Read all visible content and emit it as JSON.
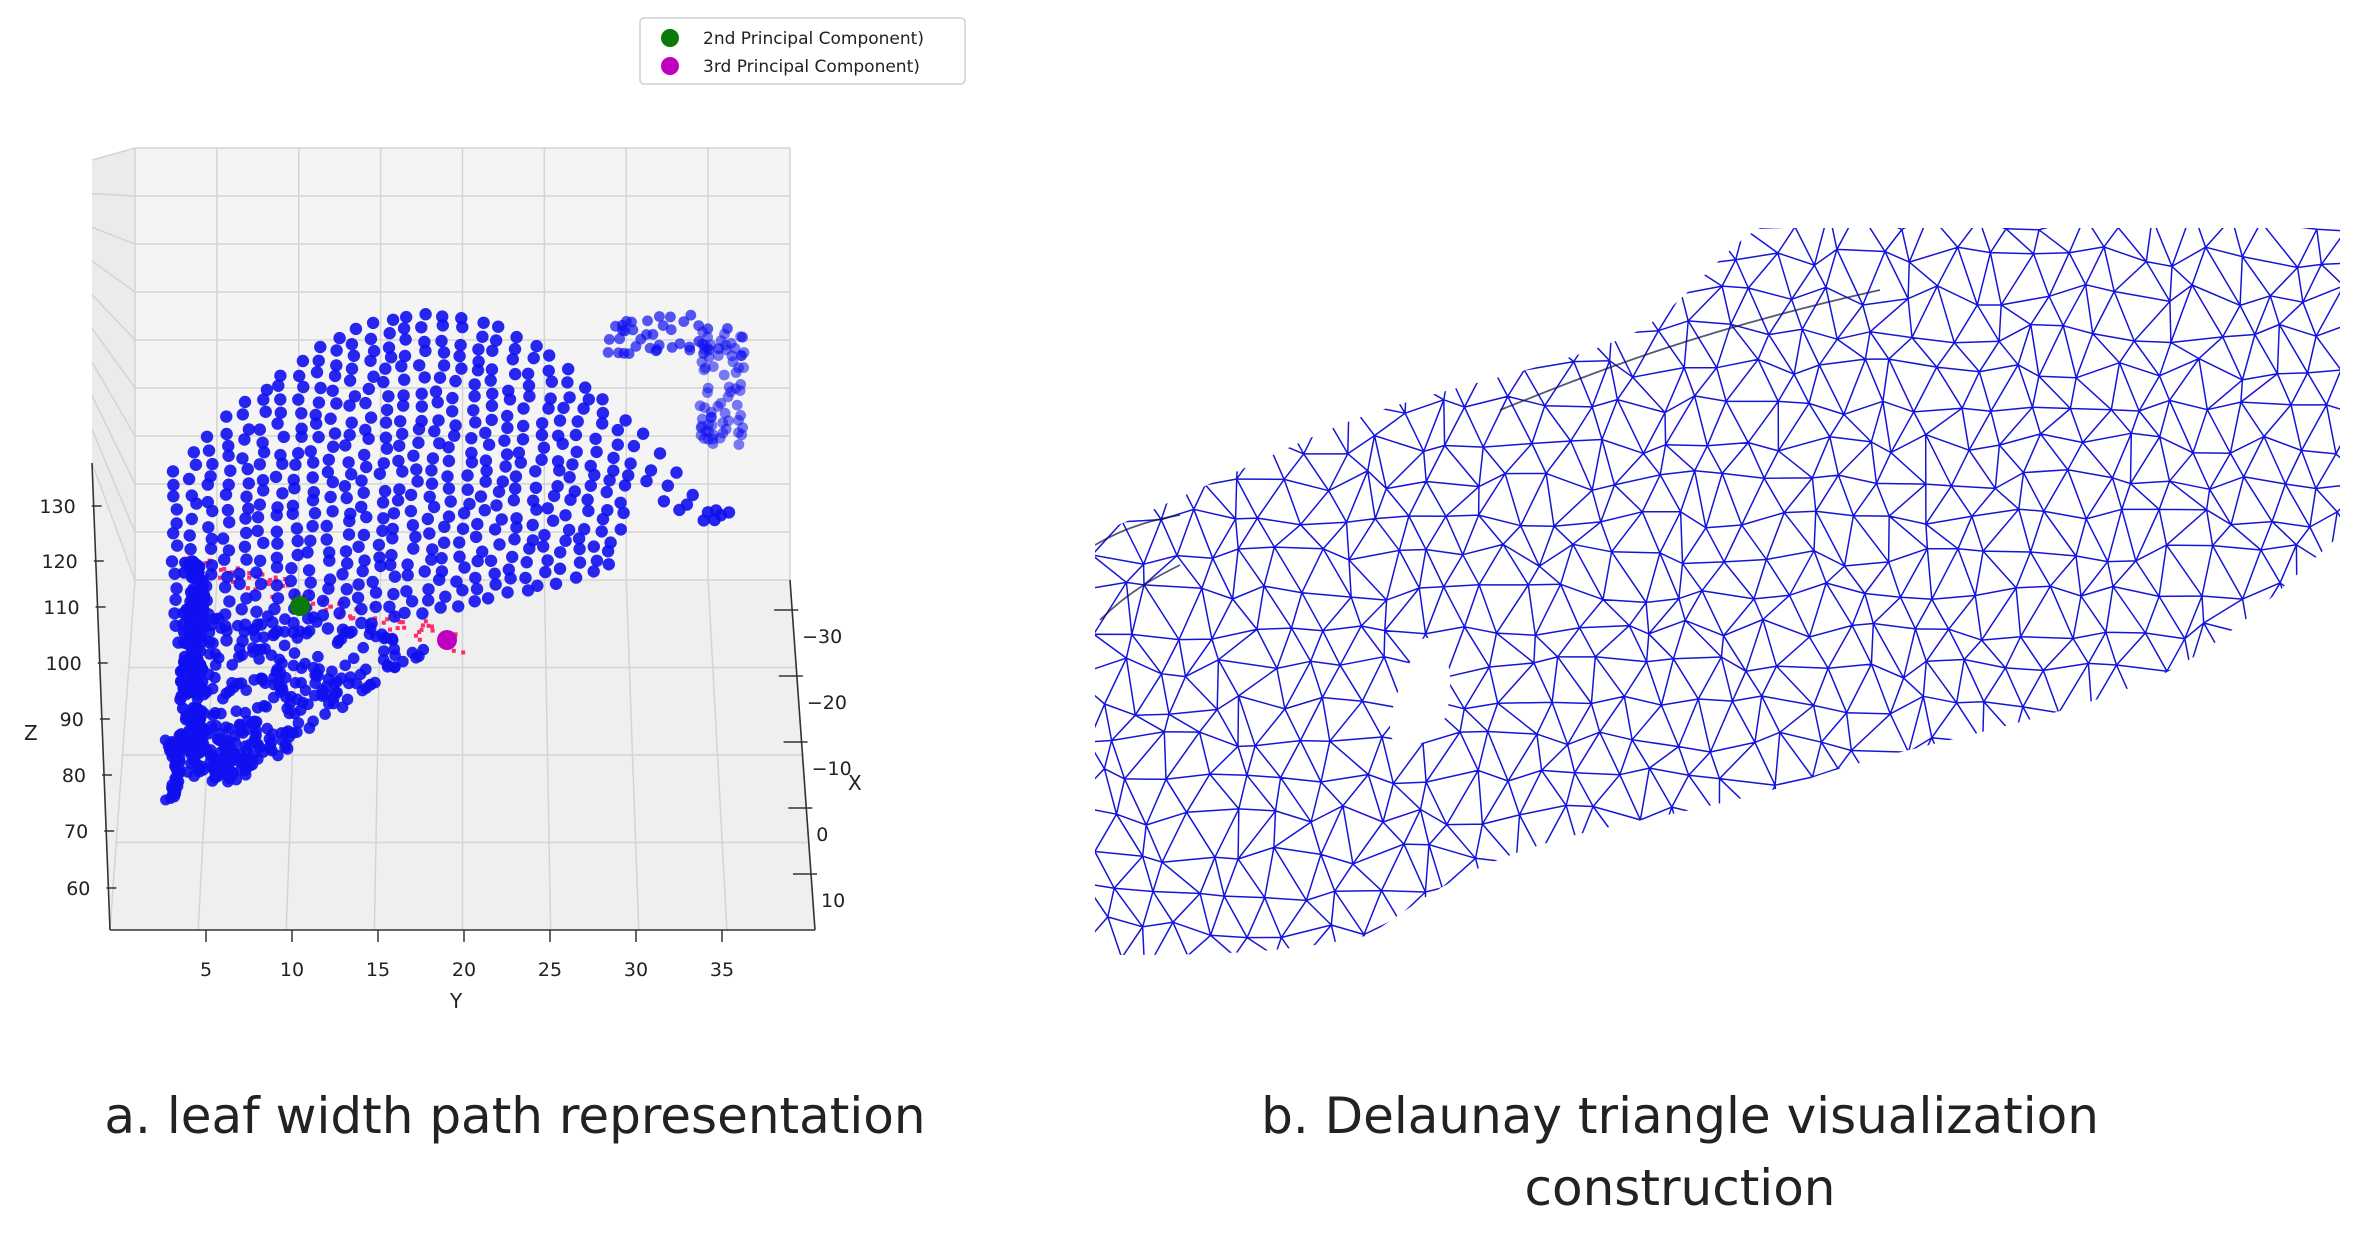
{
  "chart_data": [
    {
      "type": "scatter",
      "projection": "3d",
      "legend": {
        "placement": "top-center",
        "entries": [
          {
            "label": "2nd Principal Component)",
            "color": "#0a7a0a"
          },
          {
            "label": "3rd Principal Component)",
            "color": "#c000c0"
          }
        ]
      },
      "points_color": "#1010f0",
      "path_color": "#ff2a6a",
      "axes": {
        "x": {
          "label": "X",
          "ticks": [
            "−30",
            "−20",
            "−10",
            "0",
            "10"
          ],
          "range": [
            -35,
            12
          ]
        },
        "y": {
          "label": "Y",
          "ticks": [
            "5",
            "10",
            "15",
            "20",
            "25",
            "30",
            "35"
          ],
          "range": [
            0,
            40
          ]
        },
        "z": {
          "label": "Z",
          "ticks": [
            "60",
            "70",
            "80",
            "90",
            "100",
            "110",
            "120",
            "130"
          ],
          "range": [
            55,
            138
          ]
        }
      },
      "grid": true
    },
    {
      "type": "diagram",
      "mesh": "delaunay-triangulation",
      "edge_color": "#1515d8"
    }
  ],
  "captions": {
    "a": "a. leaf width path representation",
    "b_line1": "b. Delaunay triangle visualization",
    "b_line2": "construction"
  }
}
